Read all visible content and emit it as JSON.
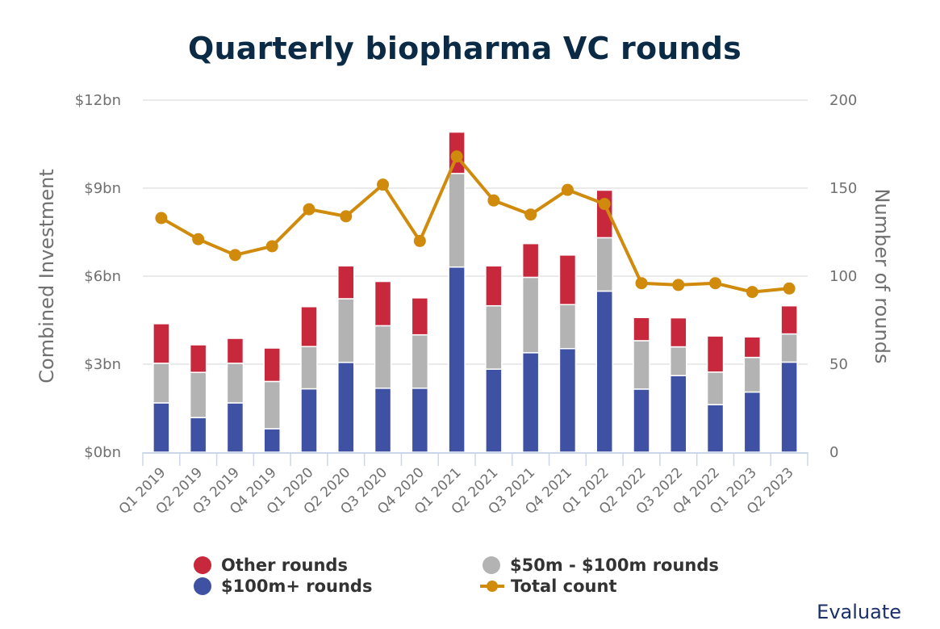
{
  "chart_data": {
    "type": "bar",
    "stacked": true,
    "title": "Quarterly biopharma VC rounds",
    "xlabel": "",
    "ylabel": "Combined Investment",
    "y2label": "Number of rounds",
    "ylim": [
      0,
      12
    ],
    "y2lim": [
      0,
      200
    ],
    "yticks": [
      "$0bn",
      "$3bn",
      "$6bn",
      "$9bn",
      "$12bn"
    ],
    "ytick_values": [
      0,
      3,
      6,
      9,
      12
    ],
    "y2ticks": [
      "0",
      "50",
      "100",
      "150",
      "200"
    ],
    "y2tick_values": [
      0,
      50,
      100,
      150,
      200
    ],
    "grid": true,
    "legend_position": "bottom",
    "categories": [
      "Q1 2019",
      "Q2 2019",
      "Q3 2019",
      "Q4 2019",
      "Q1 2020",
      "Q2 2020",
      "Q3 2020",
      "Q4 2020",
      "Q1 2021",
      "Q2 2021",
      "Q3 2021",
      "Q4 2021",
      "Q1 2022",
      "Q2 2022",
      "Q3 2022",
      "Q4 2022",
      "Q1 2023",
      "Q2 2023"
    ],
    "series": [
      {
        "name": "$100m+ rounds",
        "type": "bar",
        "axis": "left",
        "color": "#3f51a3",
        "values": [
          1.68,
          1.18,
          1.68,
          0.8,
          2.16,
          3.06,
          2.18,
          2.18,
          6.31,
          2.83,
          3.39,
          3.53,
          5.49,
          2.15,
          2.61,
          1.62,
          2.05,
          3.07
        ]
      },
      {
        "name": "$50m - $100m rounds",
        "type": "bar",
        "axis": "left",
        "color": "#b3b3b3",
        "values": [
          1.35,
          1.54,
          1.35,
          1.61,
          1.44,
          2.17,
          2.13,
          1.82,
          3.19,
          2.16,
          2.57,
          1.5,
          1.82,
          1.65,
          0.98,
          1.11,
          1.18,
          0.96
        ]
      },
      {
        "name": "Other rounds",
        "type": "bar",
        "axis": "left",
        "color": "#c8283c",
        "values": [
          1.35,
          0.94,
          0.85,
          1.14,
          1.36,
          1.12,
          1.51,
          1.26,
          1.41,
          1.36,
          1.15,
          1.69,
          1.62,
          0.79,
          0.99,
          1.23,
          0.7,
          0.96
        ]
      },
      {
        "name": "Total count",
        "type": "line",
        "axis": "right",
        "color": "#d08a0c",
        "values": [
          133,
          121,
          112,
          117,
          138,
          134,
          152,
          120,
          168,
          143,
          135,
          149,
          141,
          96,
          95,
          96,
          91,
          93
        ]
      }
    ]
  },
  "legend": {
    "items": [
      {
        "label": "Other rounds",
        "color": "#c8283c",
        "marker": "dot"
      },
      {
        "label": "$50m - $100m rounds",
        "color": "#b3b3b3",
        "marker": "dot"
      },
      {
        "label": "$100m+ rounds",
        "color": "#3f51a3",
        "marker": "dot"
      },
      {
        "label": "Total count",
        "color": "#d08a0c",
        "marker": "line"
      }
    ]
  },
  "brand": "Evaluate"
}
